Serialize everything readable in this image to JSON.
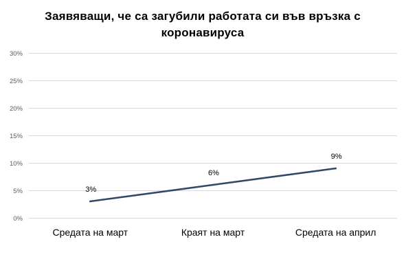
{
  "chart_data": {
    "type": "line",
    "title": "Заявяващи,  че са загубили работата  си във връзка с коронавируса",
    "title_line1": "Заявяващи,  че са загубили работата  си във връзка с",
    "title_line2": "коронавируса",
    "categories": [
      "Средата на март",
      "Краят на март",
      "Средата на април"
    ],
    "series": [
      {
        "values": [
          3,
          6,
          9
        ],
        "data_labels": [
          "3%",
          "6%",
          "9%"
        ],
        "color": "#2f4a66"
      }
    ],
    "ylim": [
      0,
      30
    ],
    "yticks": [
      0,
      5,
      10,
      15,
      20,
      25,
      30
    ],
    "ytick_labels": [
      "0%",
      "5%",
      "10%",
      "15%",
      "20%",
      "25%",
      "30%"
    ],
    "xlabel": "",
    "ylabel": "",
    "grid": true,
    "gridline_color": "#d9d9d9",
    "legend": "none"
  }
}
